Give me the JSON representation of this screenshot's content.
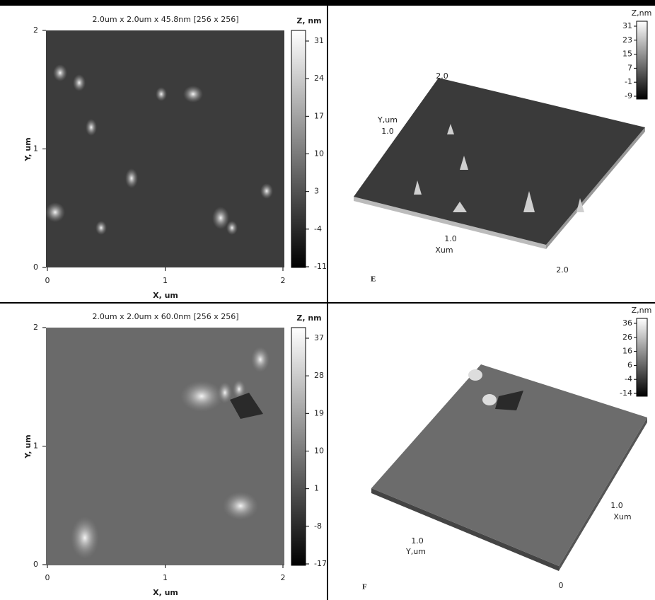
{
  "panels": [
    {
      "title": "2.0um x 2.0um x 45.8nm [256 x 256]",
      "colorbar_label": "Z, nm",
      "colorbar_ticks": [
        "31",
        "24",
        "17",
        "10",
        "3",
        "-4",
        "-11"
      ],
      "x_ticks": [
        "0",
        "1",
        "2"
      ],
      "y_ticks": [
        "2",
        "1",
        "0"
      ],
      "x_label": "X, um",
      "y_label": "Y, um"
    },
    {
      "label": "E",
      "colorbar_label": "Z,nm",
      "colorbar_ticks": [
        "31",
        "23",
        "15",
        "7",
        "-1",
        "-9"
      ],
      "axis_texts": [
        "2.0",
        "Y,um",
        "1.0",
        "1.0",
        "Xum",
        "2.0"
      ]
    },
    {
      "title": "2.0um x 2.0um x 60.0nm [256 x 256]",
      "colorbar_label": "Z, nm",
      "colorbar_ticks": [
        "37",
        "28",
        "19",
        "10",
        "1",
        "-8",
        "-17"
      ],
      "x_ticks": [
        "0",
        "1",
        "2"
      ],
      "y_ticks": [
        "2",
        "1",
        "0"
      ],
      "x_label": "X, um",
      "y_label": "Y, um"
    },
    {
      "label": "F",
      "colorbar_label": "Z,nm",
      "colorbar_ticks": [
        "36",
        "26",
        "16",
        "6",
        "-4",
        "-14"
      ],
      "axis_texts": [
        "1.0",
        "Y,um",
        "1.0",
        "Xum",
        "0"
      ]
    }
  ]
}
